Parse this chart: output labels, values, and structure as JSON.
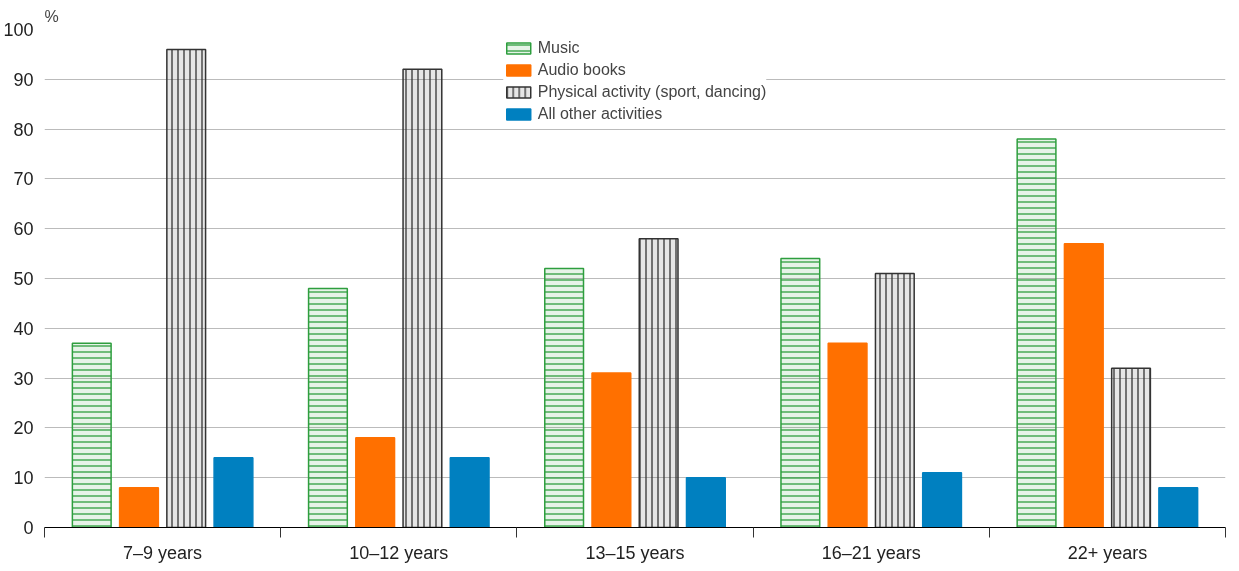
{
  "chart_data": {
    "type": "bar",
    "ylabel": "%",
    "categories": [
      "7–9 years",
      "10–12 years",
      "13–15 years",
      "16–21 years",
      "22+ years"
    ],
    "series": [
      {
        "name": "Music",
        "color": "#2e9e3e",
        "values": [
          37,
          48,
          52,
          54,
          78
        ]
      },
      {
        "name": "Audio books",
        "color": "#ff7000",
        "values": [
          8,
          18,
          31,
          37,
          57
        ]
      },
      {
        "name": "Physical activity (sport, dancing)",
        "color": "#333333",
        "values": [
          96,
          92,
          58,
          51,
          32
        ]
      },
      {
        "name": "All other activities",
        "color": "#0080c0",
        "values": [
          14,
          14,
          10,
          11,
          8
        ]
      }
    ],
    "ylim": [
      0,
      100
    ],
    "yticks": [
      0,
      10,
      20,
      30,
      40,
      50,
      60,
      70,
      80,
      90,
      100
    ],
    "grid": "y",
    "legend": "top"
  }
}
